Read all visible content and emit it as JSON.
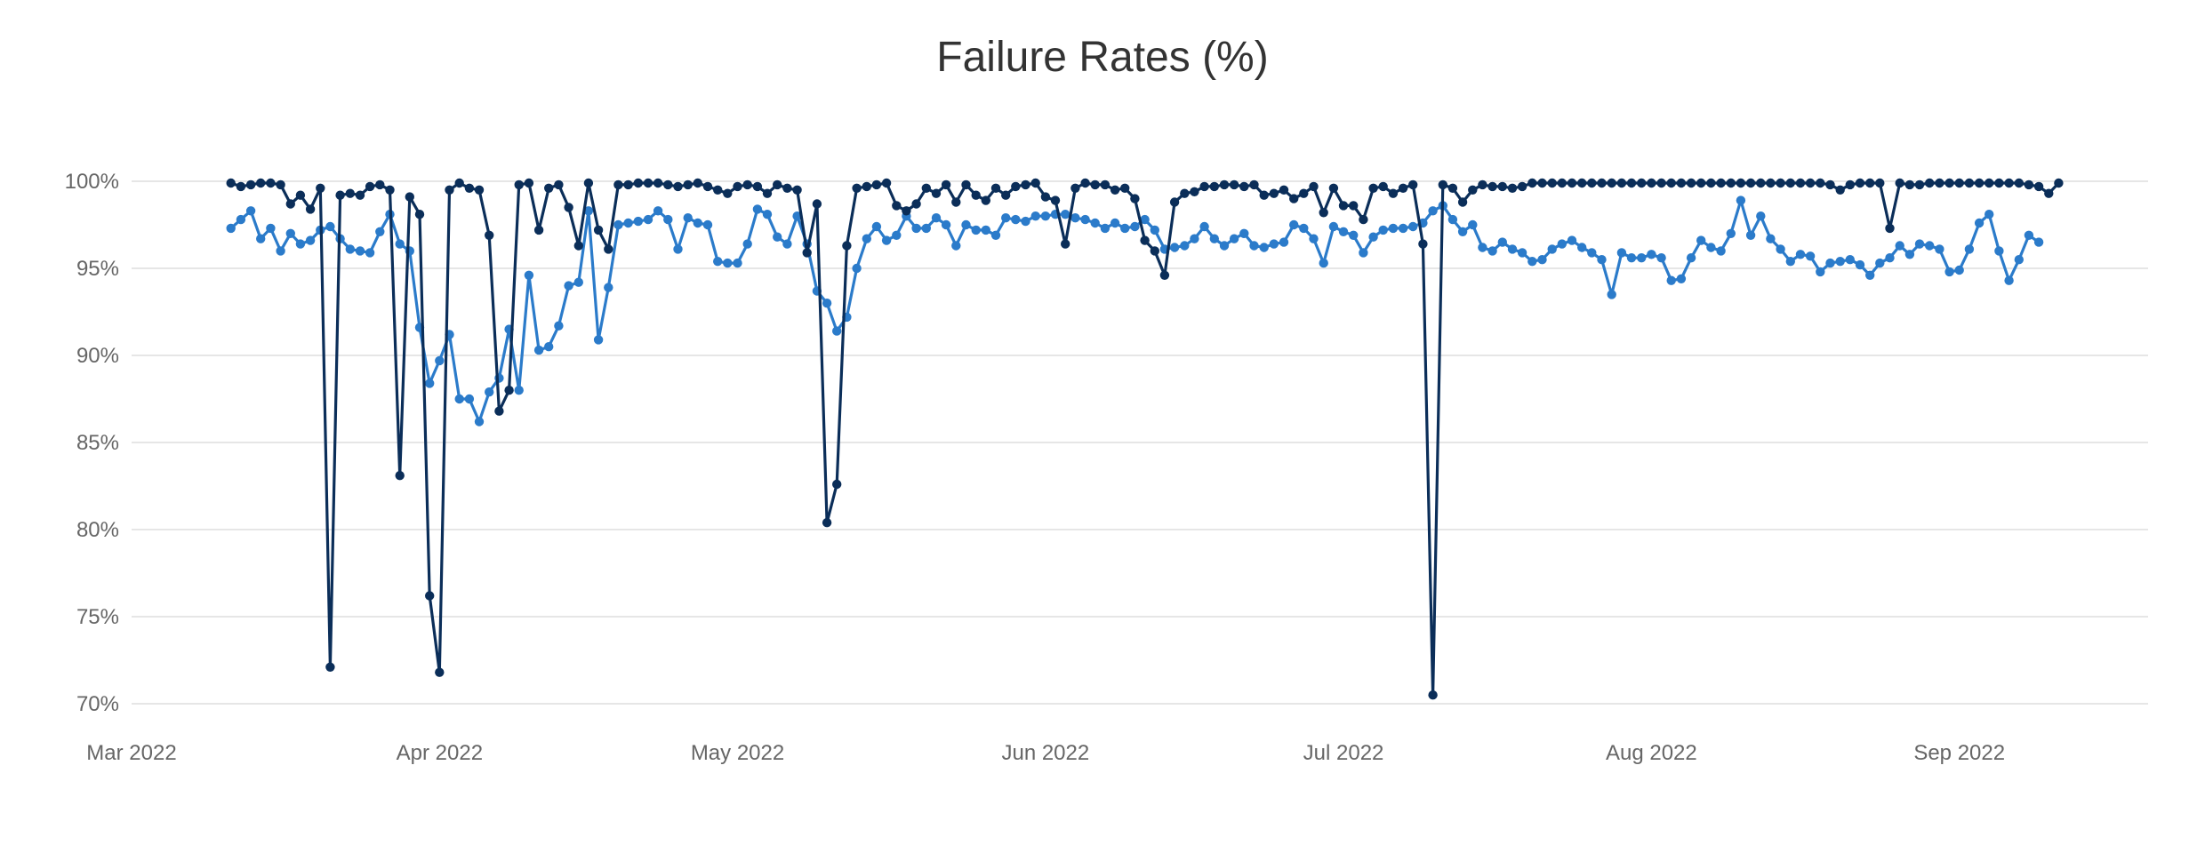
{
  "chart_data": {
    "type": "line",
    "title": "Failure Rates (%)",
    "xlabel": "",
    "ylabel": "",
    "x_start": "2022-03-11",
    "x_ticks": [
      "Mar 2022",
      "Apr 2022",
      "May 2022",
      "Jun 2022",
      "Jul 2022",
      "Aug 2022",
      "Sep 2022"
    ],
    "x_tick_dates": [
      "2022-03-01",
      "2022-04-01",
      "2022-05-01",
      "2022-06-01",
      "2022-07-01",
      "2022-08-01",
      "2022-09-01"
    ],
    "x_range": [
      "2022-03-01",
      "2022-09-20"
    ],
    "y_ticks": [
      "70%",
      "75%",
      "80%",
      "85%",
      "90%",
      "95%",
      "100%"
    ],
    "y_tick_values": [
      70,
      75,
      80,
      85,
      90,
      95,
      100
    ],
    "ylim": [
      70,
      100
    ],
    "grid": true,
    "legend": "none",
    "series": [
      {
        "color": "#0b2e59",
        "values": [
          99.9,
          99.7,
          99.8,
          99.9,
          99.9,
          99.8,
          98.7,
          99.2,
          98.4,
          99.6,
          72.1,
          99.2,
          99.3,
          99.2,
          99.7,
          99.8,
          99.5,
          83.1,
          99.1,
          98.1,
          76.2,
          71.8,
          99.5,
          99.9,
          99.6,
          99.5,
          96.9,
          86.8,
          88.0,
          99.8,
          99.9,
          97.2,
          99.6,
          99.8,
          98.5,
          96.3,
          99.9,
          97.2,
          96.1,
          99.8,
          99.8,
          99.9,
          99.9,
          99.9,
          99.8,
          99.7,
          99.8,
          99.9,
          99.7,
          99.5,
          99.3,
          99.7,
          99.8,
          99.7,
          99.3,
          99.8,
          99.6,
          99.5,
          95.9,
          98.7,
          80.4,
          82.6,
          96.3,
          99.6,
          99.7,
          99.8,
          99.9,
          98.6,
          98.3,
          98.7,
          99.6,
          99.3,
          99.8,
          98.8,
          99.8,
          99.2,
          98.9,
          99.6,
          99.2,
          99.7,
          99.8,
          99.9,
          99.1,
          98.9,
          96.4,
          99.6,
          99.9,
          99.8,
          99.8,
          99.5,
          99.6,
          99.0,
          96.6,
          96.0,
          94.6,
          98.8,
          99.3,
          99.4,
          99.7,
          99.7,
          99.8,
          99.8,
          99.7,
          99.8,
          99.2,
          99.3,
          99.5,
          99.0,
          99.3,
          99.7,
          98.2,
          99.6,
          98.6,
          98.6,
          97.8,
          99.6,
          99.7,
          99.3,
          99.6,
          99.8,
          96.4,
          70.5,
          99.8,
          99.6,
          98.8,
          99.5,
          99.8,
          99.7,
          99.7,
          99.6,
          99.7,
          99.9,
          99.9,
          99.9,
          99.9,
          99.9,
          99.9,
          99.9,
          99.9,
          99.9,
          99.9,
          99.9,
          99.9,
          99.9,
          99.9,
          99.9,
          99.9,
          99.9,
          99.9,
          99.9,
          99.9,
          99.9,
          99.9,
          99.9,
          99.9,
          99.9,
          99.9,
          99.9,
          99.9,
          99.9,
          99.9,
          99.8,
          99.5,
          99.8,
          99.9,
          99.9,
          99.9,
          97.3,
          99.9,
          99.8,
          99.8,
          99.9,
          99.9,
          99.9,
          99.9,
          99.9,
          99.9,
          99.9,
          99.9,
          99.9,
          99.9,
          99.8,
          99.7,
          99.3,
          99.9
        ]
      },
      {
        "color": "#2b7bca",
        "values": [
          97.3,
          97.8,
          98.3,
          96.7,
          97.3,
          96.0,
          97.0,
          96.4,
          96.6,
          97.2,
          97.4,
          96.7,
          96.1,
          96.0,
          95.9,
          97.1,
          98.1,
          96.4,
          96.0,
          91.6,
          88.4,
          89.7,
          91.2,
          87.5,
          87.5,
          86.2,
          87.9,
          88.7,
          91.5,
          88.0,
          94.6,
          90.3,
          90.5,
          91.7,
          94.0,
          94.2,
          98.3,
          90.9,
          93.9,
          97.5,
          97.6,
          97.7,
          97.8,
          98.3,
          97.8,
          96.1,
          97.9,
          97.6,
          97.5,
          95.4,
          95.3,
          95.3,
          96.4,
          98.4,
          98.1,
          96.8,
          96.4,
          98.0,
          96.4,
          93.7,
          93.0,
          91.4,
          92.2,
          95.0,
          96.7,
          97.4,
          96.6,
          96.9,
          98.0,
          97.3,
          97.3,
          97.9,
          97.5,
          96.3,
          97.5,
          97.2,
          97.2,
          96.9,
          97.9,
          97.8,
          97.7,
          98.0,
          98.0,
          98.1,
          98.1,
          97.9,
          97.8,
          97.6,
          97.3,
          97.6,
          97.3,
          97.4,
          97.8,
          97.2,
          96.1,
          96.2,
          96.3,
          96.7,
          97.4,
          96.7,
          96.3,
          96.7,
          97.0,
          96.3,
          96.2,
          96.4,
          96.5,
          97.5,
          97.3,
          96.7,
          95.3,
          97.4,
          97.1,
          96.9,
          95.9,
          96.8,
          97.2,
          97.3,
          97.3,
          97.4,
          97.6,
          98.3,
          98.6,
          97.8,
          97.1,
          97.5,
          96.2,
          96.0,
          96.5,
          96.1,
          95.9,
          95.4,
          95.5,
          96.1,
          96.4,
          96.6,
          96.2,
          95.9,
          95.5,
          93.5,
          95.9,
          95.6,
          95.6,
          95.8,
          95.6,
          94.3,
          94.4,
          95.6,
          96.6,
          96.2,
          96.0,
          97.0,
          98.9,
          96.9,
          98.0,
          96.7,
          96.1,
          95.4,
          95.8,
          95.7,
          94.8,
          95.3,
          95.4,
          95.5,
          95.2,
          94.6,
          95.3,
          95.6,
          96.3,
          95.8,
          96.4,
          96.3,
          96.1,
          94.8,
          94.9,
          96.1,
          97.6,
          98.1,
          96.0,
          94.3,
          95.5,
          96.9,
          96.5
        ]
      }
    ]
  }
}
